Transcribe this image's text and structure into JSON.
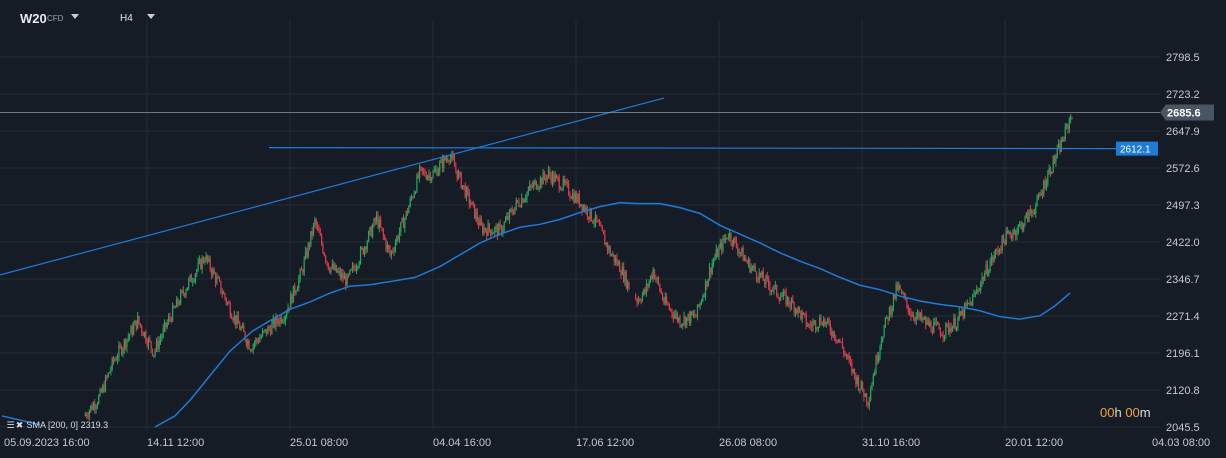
{
  "header": {
    "symbol": "W20",
    "symbol_type": "CFD",
    "timeframe": "H4"
  },
  "indicator": {
    "label": "SMA [200,  0]",
    "value": "2319.3",
    "color": "#1e7bd6"
  },
  "countdown": {
    "hours": "00",
    "hours_unit": "h",
    "minutes": "00",
    "minutes_unit": "m"
  },
  "colors": {
    "background": "#151c26",
    "grid": "#222b36",
    "bull": "#26a65b",
    "bear": "#e0394a",
    "trendline": "#1e7bd6",
    "price_line": "#8a96a3",
    "price_badge": "#4a5563",
    "level_badge": "#1e7bd6"
  },
  "chart_data": {
    "type": "candlestick",
    "x_ticks": [
      "05.09.2023  16:00",
      "14.11  12:00",
      "25.01  08:00",
      "04.04  16:00",
      "17.06  12:00",
      "26.08  08:00",
      "31.10  16:00",
      "20.01  12:00",
      "04.03  08:00"
    ],
    "y_ticks": [
      "2798.5",
      "2723.2",
      "2647.9",
      "2572.6",
      "2497.3",
      "2422.0",
      "2346.7",
      "2271.4",
      "2196.1",
      "2120.8",
      "2045.5"
    ],
    "ylim": [
      2045.5,
      2798.5
    ],
    "current_price": "2685.6",
    "horizontal_level": "2612.1",
    "close_path": [
      [
        0,
        2068
      ],
      [
        12,
        2108
      ],
      [
        22,
        2180
      ],
      [
        40,
        2262
      ],
      [
        52,
        2198
      ],
      [
        64,
        2268
      ],
      [
        76,
        2330
      ],
      [
        90,
        2392
      ],
      [
        100,
        2338
      ],
      [
        112,
        2268
      ],
      [
        124,
        2210
      ],
      [
        136,
        2240
      ],
      [
        150,
        2278
      ],
      [
        162,
        2360
      ],
      [
        172,
        2462
      ],
      [
        182,
        2375
      ],
      [
        196,
        2342
      ],
      [
        208,
        2408
      ],
      [
        218,
        2470
      ],
      [
        228,
        2395
      ],
      [
        240,
        2478
      ],
      [
        250,
        2562
      ],
      [
        260,
        2560
      ],
      [
        272,
        2600
      ],
      [
        284,
        2525
      ],
      [
        296,
        2450
      ],
      [
        310,
        2445
      ],
      [
        322,
        2498
      ],
      [
        334,
        2535
      ],
      [
        346,
        2560
      ],
      [
        358,
        2535
      ],
      [
        370,
        2502
      ],
      [
        382,
        2460
      ],
      [
        392,
        2400
      ],
      [
        400,
        2368
      ],
      [
        406,
        2330
      ],
      [
        412,
        2305
      ],
      [
        418,
        2320
      ],
      [
        424,
        2365
      ],
      [
        432,
        2300
      ],
      [
        444,
        2262
      ],
      [
        456,
        2272
      ],
      [
        468,
        2380
      ],
      [
        480,
        2440
      ],
      [
        494,
        2380
      ],
      [
        506,
        2345
      ],
      [
        518,
        2315
      ],
      [
        530,
        2290
      ],
      [
        540,
        2250
      ],
      [
        550,
        2265
      ],
      [
        562,
        2225
      ],
      [
        574,
        2150
      ],
      [
        584,
        2100
      ],
      [
        594,
        2230
      ],
      [
        606,
        2330
      ],
      [
        616,
        2278
      ],
      [
        628,
        2255
      ],
      [
        640,
        2240
      ],
      [
        650,
        2260
      ],
      [
        662,
        2305
      ],
      [
        674,
        2375
      ],
      [
        686,
        2430
      ],
      [
        698,
        2455
      ],
      [
        710,
        2500
      ],
      [
        718,
        2560
      ],
      [
        726,
        2608
      ],
      [
        732,
        2652
      ],
      [
        736,
        2685.6
      ]
    ],
    "sma_path": [
      [
        155,
        2045.5
      ],
      [
        175,
        2068
      ],
      [
        190,
        2100
      ],
      [
        210,
        2150
      ],
      [
        230,
        2200
      ],
      [
        252,
        2240
      ],
      [
        270,
        2262
      ],
      [
        290,
        2285
      ],
      [
        310,
        2300
      ],
      [
        330,
        2318
      ],
      [
        350,
        2332
      ],
      [
        370,
        2335
      ],
      [
        392,
        2342
      ],
      [
        415,
        2350
      ],
      [
        440,
        2372
      ],
      [
        460,
        2396
      ],
      [
        480,
        2420
      ],
      [
        500,
        2438
      ],
      [
        520,
        2452
      ],
      [
        540,
        2458
      ],
      [
        560,
        2468
      ],
      [
        580,
        2482
      ],
      [
        600,
        2494
      ],
      [
        620,
        2502
      ],
      [
        640,
        2500
      ],
      [
        660,
        2500
      ],
      [
        680,
        2492
      ],
      [
        700,
        2480
      ],
      [
        720,
        2456
      ],
      [
        740,
        2438
      ],
      [
        760,
        2420
      ],
      [
        780,
        2400
      ],
      [
        800,
        2383
      ],
      [
        820,
        2368
      ],
      [
        840,
        2350
      ],
      [
        860,
        2334
      ],
      [
        880,
        2325
      ],
      [
        900,
        2312
      ],
      [
        920,
        2302
      ],
      [
        940,
        2295
      ],
      [
        960,
        2290
      ],
      [
        980,
        2282
      ],
      [
        1000,
        2270
      ],
      [
        1020,
        2265
      ],
      [
        1040,
        2272
      ],
      [
        1055,
        2292
      ],
      [
        1070,
        2318
      ]
    ],
    "trendline": {
      "from": [
        0,
        2355
      ],
      "to": [
        664,
        2715
      ]
    },
    "gap_bars": 1
  }
}
